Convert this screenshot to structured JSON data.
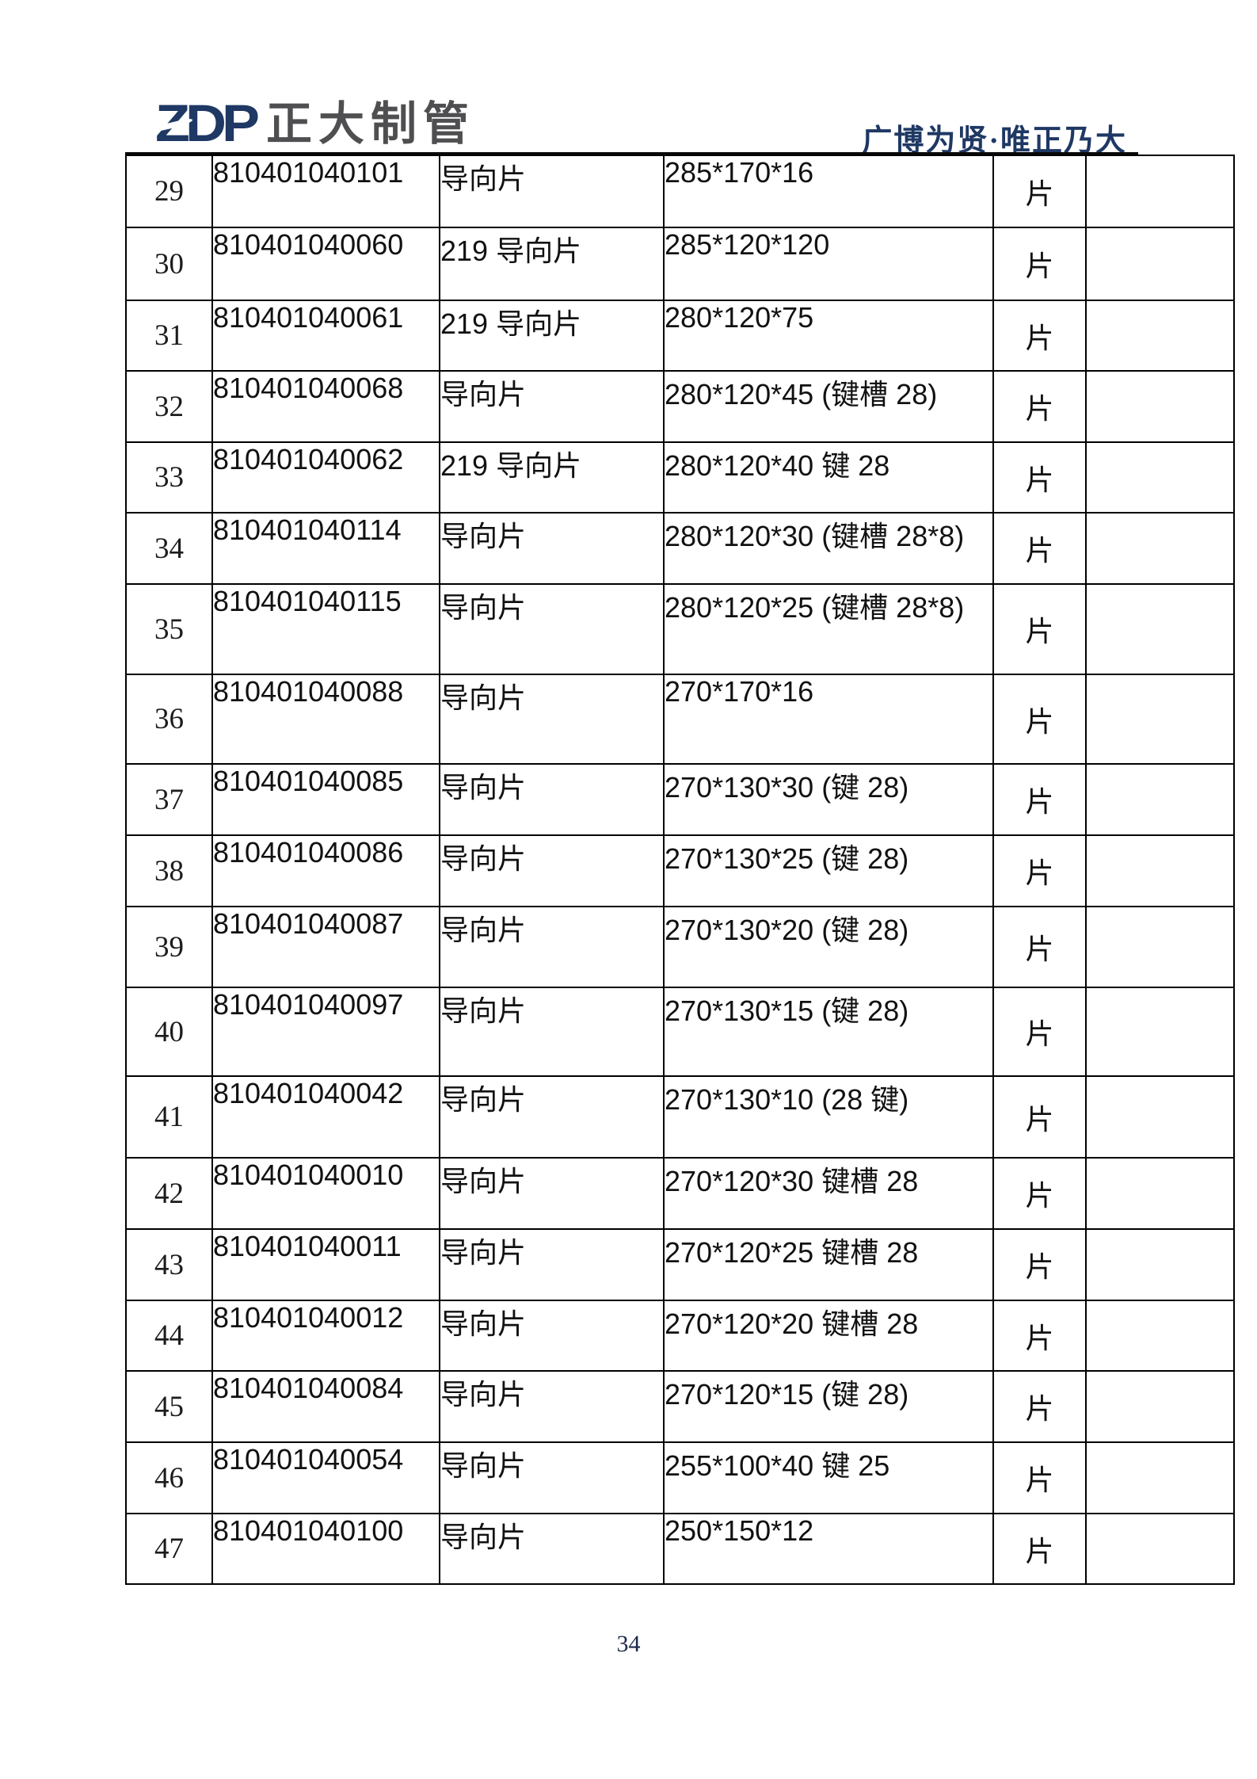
{
  "colors": {
    "brand_navy": "#1f3864",
    "logo_gray": "#4f4f51",
    "table_border": "#000000",
    "text_black": "#111111"
  },
  "header": {
    "logo_text": "ZDP",
    "company_name": "正大制管",
    "slogan": "广博为贤·唯正乃大"
  },
  "table": {
    "rows": [
      {
        "no": "29",
        "code": "810401040101",
        "name": "导向片",
        "spec": "285*170*16",
        "unit": "片",
        "note": ""
      },
      {
        "no": "30",
        "code": "810401040060",
        "name": "219 导向片",
        "spec": "285*120*120",
        "unit": "片",
        "note": ""
      },
      {
        "no": "31",
        "code": "810401040061",
        "name": "219 导向片",
        "spec": "280*120*75",
        "unit": "片",
        "note": ""
      },
      {
        "no": "32",
        "code": "810401040068",
        "name": "导向片",
        "spec": "280*120*45 (键槽 28)",
        "unit": "片",
        "note": ""
      },
      {
        "no": "33",
        "code": "810401040062",
        "name": "219 导向片",
        "spec": "280*120*40 键 28",
        "unit": "片",
        "note": ""
      },
      {
        "no": "34",
        "code": "810401040114",
        "name": "导向片",
        "spec": "280*120*30 (键槽 28*8)",
        "unit": "片",
        "note": ""
      },
      {
        "no": "35",
        "code": "810401040115",
        "name": "导向片",
        "spec": "280*120*25 (键槽 28*8)",
        "unit": "片",
        "note": ""
      },
      {
        "no": "36",
        "code": "810401040088",
        "name": "导向片",
        "spec": "270*170*16",
        "unit": "片",
        "note": ""
      },
      {
        "no": "37",
        "code": "810401040085",
        "name": "导向片",
        "spec": "270*130*30 (键 28)",
        "unit": "片",
        "note": ""
      },
      {
        "no": "38",
        "code": "810401040086",
        "name": "导向片",
        "spec": "270*130*25 (键 28)",
        "unit": "片",
        "note": ""
      },
      {
        "no": "39",
        "code": "810401040087",
        "name": "导向片",
        "spec": "270*130*20 (键 28)",
        "unit": "片",
        "note": ""
      },
      {
        "no": "40",
        "code": "810401040097",
        "name": "导向片",
        "spec": "270*130*15 (键 28)",
        "unit": "片",
        "note": ""
      },
      {
        "no": "41",
        "code": "810401040042",
        "name": "导向片",
        "spec": "270*130*10 (28 键)",
        "unit": "片",
        "note": ""
      },
      {
        "no": "42",
        "code": "810401040010",
        "name": "导向片",
        "spec": "270*120*30 键槽 28",
        "unit": "片",
        "note": ""
      },
      {
        "no": "43",
        "code": "810401040011",
        "name": "导向片",
        "spec": "270*120*25 键槽 28",
        "unit": "片",
        "note": ""
      },
      {
        "no": "44",
        "code": "810401040012",
        "name": "导向片",
        "spec": "270*120*20 键槽 28",
        "unit": "片",
        "note": ""
      },
      {
        "no": "45",
        "code": "810401040084",
        "name": "导向片",
        "spec": "270*120*15 (键 28)",
        "unit": "片",
        "note": ""
      },
      {
        "no": "46",
        "code": "810401040054",
        "name": "导向片",
        "spec": "255*100*40 键 25",
        "unit": "片",
        "note": ""
      },
      {
        "no": "47",
        "code": "810401040100",
        "name": "导向片",
        "spec": "250*150*12",
        "unit": "片",
        "note": ""
      }
    ]
  },
  "footer": {
    "page_number": "34"
  }
}
